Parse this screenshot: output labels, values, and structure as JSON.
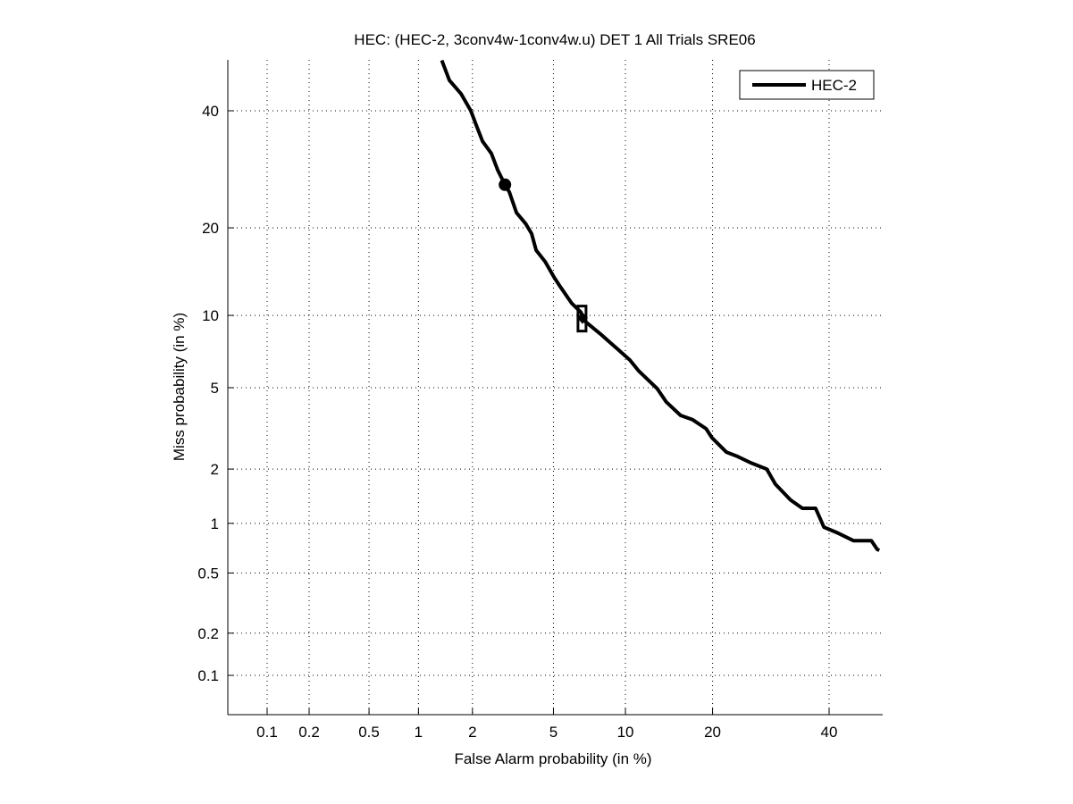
{
  "chart_data": {
    "type": "line",
    "title": "HEC: (HEC-2, 3conv4w-1conv4w.u) DET 1 All Trials SRE06",
    "xlabel": "False Alarm probability (in %)",
    "ylabel": "Miss probability (in %)",
    "scale": "normal-deviate",
    "xlim": [
      0.05,
      50
    ],
    "ylim": [
      0.05,
      50
    ],
    "grid": true,
    "legend_position": "top-right",
    "xticks": [
      0.1,
      0.2,
      0.5,
      1,
      2,
      5,
      10,
      20,
      40
    ],
    "xtick_labels": [
      "0.1",
      "0.2",
      "0.5",
      "1",
      "2",
      "5",
      "10",
      "20",
      "40"
    ],
    "yticks": [
      0.1,
      0.2,
      0.5,
      1,
      2,
      5,
      10,
      20,
      40
    ],
    "ytick_labels": [
      "0.1",
      "0.2",
      "0.5",
      "1",
      "2",
      "5",
      "10",
      "20",
      "40"
    ],
    "series": [
      {
        "name": "HEC-2",
        "color": "#000000",
        "x": [
          1.36,
          1.5,
          1.74,
          1.96,
          2.09,
          2.26,
          2.51,
          2.7,
          2.94,
          3.09,
          3.35,
          3.71,
          3.96,
          4.16,
          4.58,
          5.03,
          5.32,
          6.03,
          6.59,
          6.89,
          7.96,
          9.24,
          10.4,
          11.2,
          13.1,
          14.1,
          15.8,
          17.3,
          19.1,
          19.9,
          22.0,
          23.7,
          25.8,
          28.5,
          30.0,
          32.7,
          34.9,
          37.4,
          39.0,
          41.8,
          44.8,
          48.4,
          49.6,
          50.0
        ],
        "y": [
          50.0,
          46.0,
          43.3,
          40.0,
          37.3,
          34.2,
          32.0,
          29.1,
          26.6,
          25.4,
          22.2,
          20.6,
          19.2,
          17.0,
          15.6,
          13.8,
          12.9,
          11.1,
          10.3,
          9.47,
          8.46,
          7.4,
          6.61,
          5.95,
          4.96,
          4.31,
          3.72,
          3.55,
          3.21,
          2.9,
          2.45,
          2.33,
          2.16,
          2.0,
          1.66,
          1.36,
          1.22,
          1.22,
          0.95,
          0.875,
          0.79,
          0.79,
          0.7,
          0.69
        ]
      }
    ],
    "markers": [
      {
        "name": "min-dcf-point",
        "shape": "circle",
        "x": 2.94,
        "y": 26.6
      },
      {
        "name": "actual-decision-point",
        "shape": "square",
        "x": 6.7,
        "y": 9.8
      }
    ],
    "legend": [
      "HEC-2"
    ]
  }
}
